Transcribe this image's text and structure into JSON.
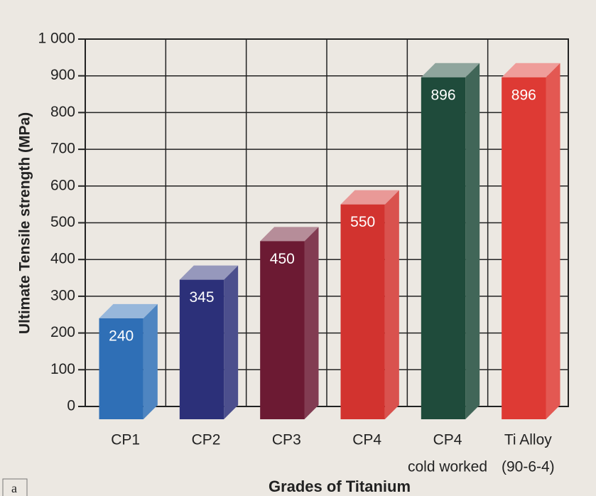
{
  "chart_data": {
    "type": "bar3d",
    "ylabel": "Ultimate Tensile strength (MPa)",
    "xlabel": "Grades of Titanium",
    "panel_label": "a",
    "categories": [
      [
        "CP1"
      ],
      [
        "CP2"
      ],
      [
        "CP3"
      ],
      [
        "CP4"
      ],
      [
        "CP4",
        "cold worked"
      ],
      [
        "Ti Alloy",
        "(90-6-4)"
      ]
    ],
    "values": [
      240,
      345,
      450,
      550,
      896,
      896
    ],
    "colors": [
      "#2f6fb6",
      "#2c3079",
      "#6c1a33",
      "#d2332f",
      "#1f4b3b",
      "#de3a34"
    ],
    "ylim": [
      0,
      1000
    ],
    "yticks": [
      0,
      100,
      200,
      300,
      400,
      500,
      600,
      700,
      800,
      900,
      {
        "value": 1000,
        "label": "1 000"
      }
    ],
    "grid": true
  }
}
